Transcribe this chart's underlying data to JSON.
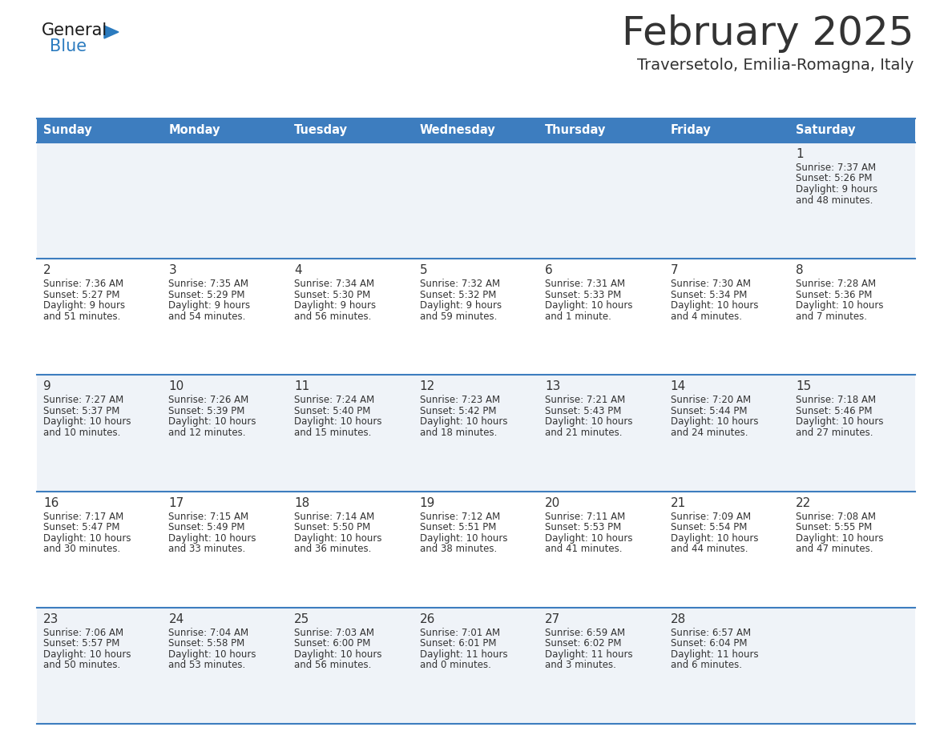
{
  "title": "February 2025",
  "subtitle": "Traversetolo, Emilia-Romagna, Italy",
  "header_color": "#3d7dbf",
  "header_text_color": "#ffffff",
  "days_of_week": [
    "Sunday",
    "Monday",
    "Tuesday",
    "Wednesday",
    "Thursday",
    "Friday",
    "Saturday"
  ],
  "row_colors": [
    "#eff3f8",
    "#ffffff"
  ],
  "divider_color": "#3d7dbf",
  "text_color": "#333333",
  "day_num_color": "#333333",
  "logo_general_color": "#1a1a1a",
  "logo_blue_color": "#2b7bbf",
  "calendar_data": [
    [
      null,
      null,
      null,
      null,
      null,
      null,
      {
        "day": 1,
        "sunrise": "7:37 AM",
        "sunset": "5:26 PM",
        "daylight": "9 hours",
        "daylight2": "and 48 minutes."
      }
    ],
    [
      {
        "day": 2,
        "sunrise": "7:36 AM",
        "sunset": "5:27 PM",
        "daylight": "9 hours",
        "daylight2": "and 51 minutes."
      },
      {
        "day": 3,
        "sunrise": "7:35 AM",
        "sunset": "5:29 PM",
        "daylight": "9 hours",
        "daylight2": "and 54 minutes."
      },
      {
        "day": 4,
        "sunrise": "7:34 AM",
        "sunset": "5:30 PM",
        "daylight": "9 hours",
        "daylight2": "and 56 minutes."
      },
      {
        "day": 5,
        "sunrise": "7:32 AM",
        "sunset": "5:32 PM",
        "daylight": "9 hours",
        "daylight2": "and 59 minutes."
      },
      {
        "day": 6,
        "sunrise": "7:31 AM",
        "sunset": "5:33 PM",
        "daylight": "10 hours",
        "daylight2": "and 1 minute."
      },
      {
        "day": 7,
        "sunrise": "7:30 AM",
        "sunset": "5:34 PM",
        "daylight": "10 hours",
        "daylight2": "and 4 minutes."
      },
      {
        "day": 8,
        "sunrise": "7:28 AM",
        "sunset": "5:36 PM",
        "daylight": "10 hours",
        "daylight2": "and 7 minutes."
      }
    ],
    [
      {
        "day": 9,
        "sunrise": "7:27 AM",
        "sunset": "5:37 PM",
        "daylight": "10 hours",
        "daylight2": "and 10 minutes."
      },
      {
        "day": 10,
        "sunrise": "7:26 AM",
        "sunset": "5:39 PM",
        "daylight": "10 hours",
        "daylight2": "and 12 minutes."
      },
      {
        "day": 11,
        "sunrise": "7:24 AM",
        "sunset": "5:40 PM",
        "daylight": "10 hours",
        "daylight2": "and 15 minutes."
      },
      {
        "day": 12,
        "sunrise": "7:23 AM",
        "sunset": "5:42 PM",
        "daylight": "10 hours",
        "daylight2": "and 18 minutes."
      },
      {
        "day": 13,
        "sunrise": "7:21 AM",
        "sunset": "5:43 PM",
        "daylight": "10 hours",
        "daylight2": "and 21 minutes."
      },
      {
        "day": 14,
        "sunrise": "7:20 AM",
        "sunset": "5:44 PM",
        "daylight": "10 hours",
        "daylight2": "and 24 minutes."
      },
      {
        "day": 15,
        "sunrise": "7:18 AM",
        "sunset": "5:46 PM",
        "daylight": "10 hours",
        "daylight2": "and 27 minutes."
      }
    ],
    [
      {
        "day": 16,
        "sunrise": "7:17 AM",
        "sunset": "5:47 PM",
        "daylight": "10 hours",
        "daylight2": "and 30 minutes."
      },
      {
        "day": 17,
        "sunrise": "7:15 AM",
        "sunset": "5:49 PM",
        "daylight": "10 hours",
        "daylight2": "and 33 minutes."
      },
      {
        "day": 18,
        "sunrise": "7:14 AM",
        "sunset": "5:50 PM",
        "daylight": "10 hours",
        "daylight2": "and 36 minutes."
      },
      {
        "day": 19,
        "sunrise": "7:12 AM",
        "sunset": "5:51 PM",
        "daylight": "10 hours",
        "daylight2": "and 38 minutes."
      },
      {
        "day": 20,
        "sunrise": "7:11 AM",
        "sunset": "5:53 PM",
        "daylight": "10 hours",
        "daylight2": "and 41 minutes."
      },
      {
        "day": 21,
        "sunrise": "7:09 AM",
        "sunset": "5:54 PM",
        "daylight": "10 hours",
        "daylight2": "and 44 minutes."
      },
      {
        "day": 22,
        "sunrise": "7:08 AM",
        "sunset": "5:55 PM",
        "daylight": "10 hours",
        "daylight2": "and 47 minutes."
      }
    ],
    [
      {
        "day": 23,
        "sunrise": "7:06 AM",
        "sunset": "5:57 PM",
        "daylight": "10 hours",
        "daylight2": "and 50 minutes."
      },
      {
        "day": 24,
        "sunrise": "7:04 AM",
        "sunset": "5:58 PM",
        "daylight": "10 hours",
        "daylight2": "and 53 minutes."
      },
      {
        "day": 25,
        "sunrise": "7:03 AM",
        "sunset": "6:00 PM",
        "daylight": "10 hours",
        "daylight2": "and 56 minutes."
      },
      {
        "day": 26,
        "sunrise": "7:01 AM",
        "sunset": "6:01 PM",
        "daylight": "11 hours",
        "daylight2": "and 0 minutes."
      },
      {
        "day": 27,
        "sunrise": "6:59 AM",
        "sunset": "6:02 PM",
        "daylight": "11 hours",
        "daylight2": "and 3 minutes."
      },
      {
        "day": 28,
        "sunrise": "6:57 AM",
        "sunset": "6:04 PM",
        "daylight": "11 hours",
        "daylight2": "and 6 minutes."
      },
      null
    ]
  ],
  "fig_width": 11.88,
  "fig_height": 9.18,
  "dpi": 100
}
